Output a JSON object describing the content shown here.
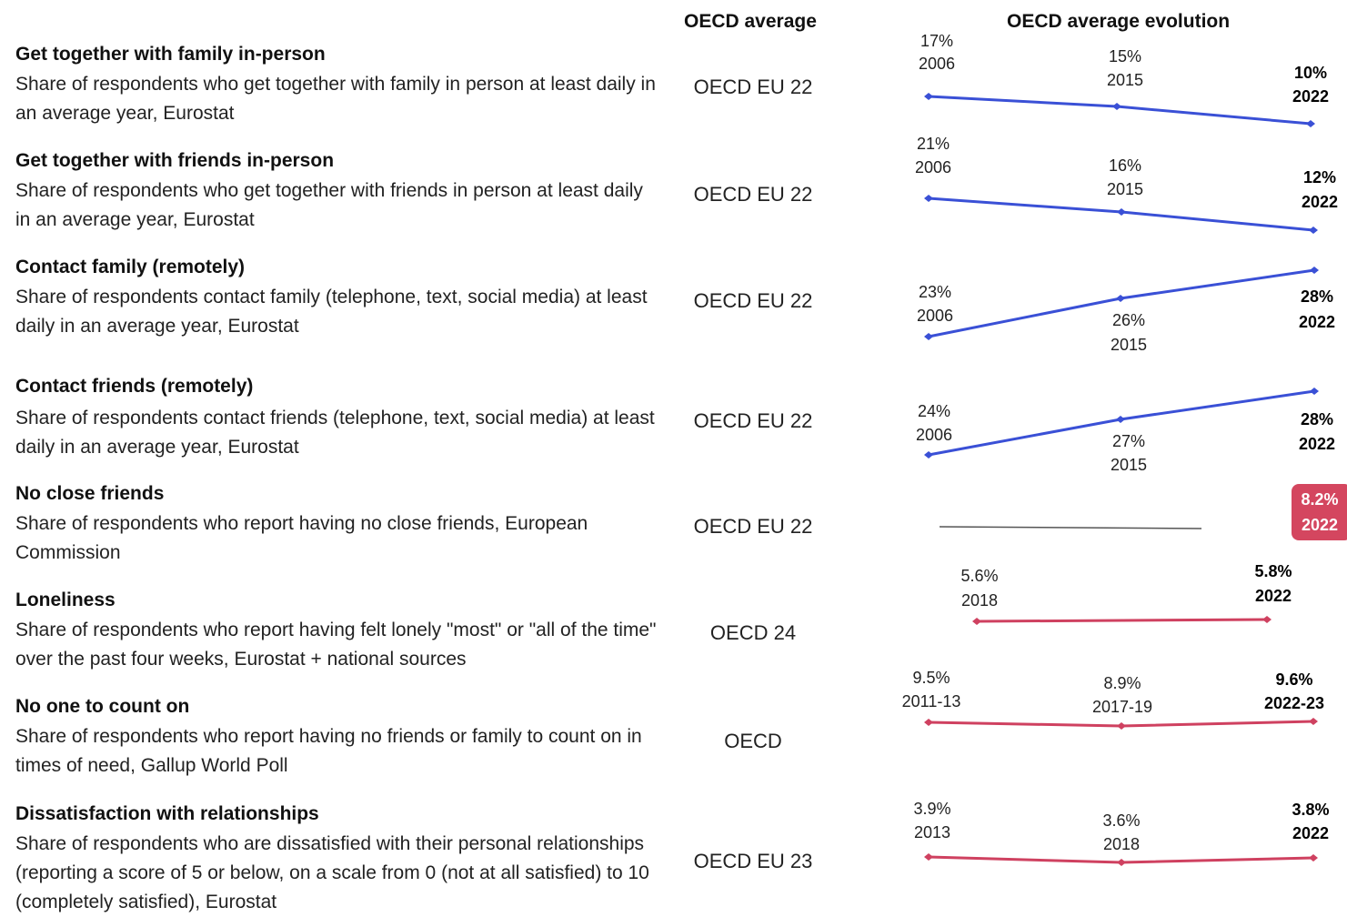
{
  "headers": {
    "avg": "OECD average",
    "evolution": "OECD average evolution"
  },
  "colors": {
    "improve": "#3a50d6",
    "worsen": "#cf4160",
    "badge": "#d4465f",
    "neutral_line": "#555555"
  },
  "indicators": [
    {
      "title": "Get together with family in-person",
      "description": "Share of respondents who get together with family in person at least daily in an average year, Eurostat",
      "average": "OECD EU 22"
    },
    {
      "title": "Get together with friends in-person",
      "description": "Share of respondents who get together with friends in person at least daily in an average year, Eurostat",
      "average": "OECD EU 22"
    },
    {
      "title": "Contact family (remotely)",
      "description": "Share of respondents contact family (telephone, text, social media) at least daily in an average year, Eurostat",
      "average": "OECD EU 22"
    },
    {
      "title": "Contact friends (remotely)",
      "description": "Share of respondents contact friends (telephone, text, social media) at least daily in an average year, Eurostat",
      "average": "OECD EU 22"
    },
    {
      "title": "No close friends",
      "description": "Share of respondents who report having no close friends, European Commission",
      "average": "OECD EU 22"
    },
    {
      "title": "Loneliness",
      "description": "Share of respondents who report having felt lonely \"most\" or \"all of the time\" over the past four weeks, Eurostat + national sources",
      "average": "OECD 24"
    },
    {
      "title": "No one to count on",
      "description": "Share of respondents who report having no friends or family to count on in times of need, Gallup World Poll",
      "average": "OECD"
    },
    {
      "title": "Dissatisfaction with relationships",
      "description": "Share of respondents who are dissatisfied with their personal relationships (reporting a score of 5 or below, on a scale from 0 (not at all satisfied) to 10 (completely satisfied), Eurostat",
      "average": "OECD EU 23"
    }
  ],
  "chart_data": [
    {
      "type": "line",
      "indicator": "Get together with family in-person",
      "color": "#3a50d6",
      "points": [
        {
          "x": "2006",
          "y": 17,
          "label": "17%"
        },
        {
          "x": "2015",
          "y": 15,
          "label": "15%"
        },
        {
          "x": "2022",
          "y": 10,
          "label": "10%"
        }
      ]
    },
    {
      "type": "line",
      "indicator": "Get together with friends in-person",
      "color": "#3a50d6",
      "points": [
        {
          "x": "2006",
          "y": 21,
          "label": "21%"
        },
        {
          "x": "2015",
          "y": 16,
          "label": "16%"
        },
        {
          "x": "2022",
          "y": 12,
          "label": "12%"
        }
      ]
    },
    {
      "type": "line",
      "indicator": "Contact family (remotely)",
      "color": "#3a50d6",
      "points": [
        {
          "x": "2006",
          "y": 23,
          "label": "23%"
        },
        {
          "x": "2015",
          "y": 26,
          "label": "26%"
        },
        {
          "x": "2022",
          "y": 28,
          "label": "28%"
        }
      ]
    },
    {
      "type": "line",
      "indicator": "Contact friends (remotely)",
      "color": "#3a50d6",
      "points": [
        {
          "x": "2006",
          "y": 24,
          "label": "24%"
        },
        {
          "x": "2015",
          "y": 27,
          "label": "27%"
        },
        {
          "x": "2022",
          "y": 28,
          "label": "28%"
        }
      ]
    },
    {
      "type": "line",
      "indicator": "No close friends",
      "color": "#555555",
      "highlight_last": true,
      "points": [
        {
          "x": "2022",
          "y": 8.2,
          "label": "8.2%"
        }
      ]
    },
    {
      "type": "line",
      "indicator": "Loneliness",
      "color": "#cf4160",
      "points": [
        {
          "x": "2018",
          "y": 5.6,
          "label": "5.6%"
        },
        {
          "x": "2022",
          "y": 5.8,
          "label": "5.8%"
        }
      ]
    },
    {
      "type": "line",
      "indicator": "No one to count on",
      "color": "#cf4160",
      "points": [
        {
          "x": "2011-13",
          "y": 9.5,
          "label": "9.5%"
        },
        {
          "x": "2017-19",
          "y": 8.9,
          "label": "8.9%"
        },
        {
          "x": "2022-23",
          "y": 9.6,
          "label": "9.6%"
        }
      ]
    },
    {
      "type": "line",
      "indicator": "Dissatisfaction with relationships",
      "color": "#cf4160",
      "points": [
        {
          "x": "2013",
          "y": 3.9,
          "label": "3.9%"
        },
        {
          "x": "2018",
          "y": 3.6,
          "label": "3.6%"
        },
        {
          "x": "2022",
          "y": 3.8,
          "label": "3.8%"
        }
      ]
    }
  ]
}
